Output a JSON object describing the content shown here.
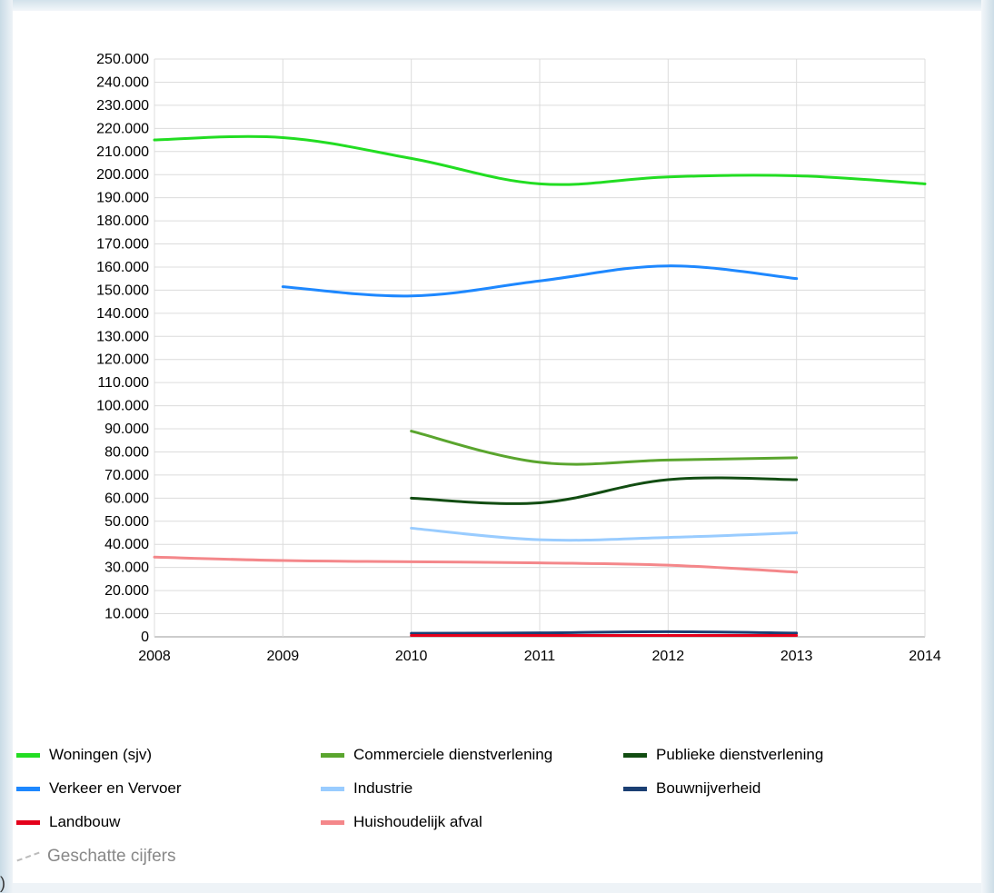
{
  "chart_data": {
    "type": "line",
    "x": [
      2008,
      2009,
      2010,
      2011,
      2012,
      2013,
      2014
    ],
    "x_tick_labels": [
      "2008",
      "2009",
      "2010",
      "2011",
      "2012",
      "2013",
      "2014"
    ],
    "ylim": [
      0,
      250000
    ],
    "y_tick_labels": [
      "0",
      "10.000",
      "20.000",
      "30.000",
      "40.000",
      "50.000",
      "60.000",
      "70.000",
      "80.000",
      "90.000",
      "100.000",
      "110.000",
      "120.000",
      "130.000",
      "140.000",
      "150.000",
      "160.000",
      "170.000",
      "180.000",
      "190.000",
      "200.000",
      "210.000",
      "220.000",
      "230.000",
      "240.000",
      "250.000"
    ],
    "grid": true,
    "legend_position": "bottom",
    "series": [
      {
        "name": "Woningen (sjv)",
        "color": "#22dd22",
        "points": [
          [
            2008,
            215000
          ],
          [
            2009,
            216000
          ],
          [
            2010,
            207000
          ],
          [
            2011,
            196000
          ],
          [
            2012,
            199000
          ],
          [
            2013,
            199500
          ],
          [
            2014,
            196000
          ]
        ]
      },
      {
        "name": "Verkeer en Vervoer",
        "color": "#1e88ff",
        "points": [
          [
            2009,
            151500
          ],
          [
            2010,
            147500
          ],
          [
            2011,
            154000
          ],
          [
            2012,
            160500
          ],
          [
            2013,
            155000
          ]
        ]
      },
      {
        "name": "Commerciele dienstverlening",
        "color": "#5aa52e",
        "points": [
          [
            2010,
            89000
          ],
          [
            2011,
            75500
          ],
          [
            2012,
            76500
          ],
          [
            2013,
            77500
          ]
        ]
      },
      {
        "name": "Publieke dienstverlening",
        "color": "#124d12",
        "points": [
          [
            2010,
            60000
          ],
          [
            2011,
            58000
          ],
          [
            2012,
            68000
          ],
          [
            2013,
            68000
          ]
        ]
      },
      {
        "name": "Industrie",
        "color": "#99ccff",
        "points": [
          [
            2010,
            47000
          ],
          [
            2011,
            42000
          ],
          [
            2012,
            43000
          ],
          [
            2013,
            45000
          ]
        ]
      },
      {
        "name": "Huishoudelijk afval",
        "color": "#f4878a",
        "points": [
          [
            2008,
            34500
          ],
          [
            2009,
            33000
          ],
          [
            2010,
            32500
          ],
          [
            2011,
            32000
          ],
          [
            2012,
            31000
          ],
          [
            2013,
            28000
          ]
        ]
      },
      {
        "name": "Bouwnijverheid",
        "color": "#1b3f73",
        "points": [
          [
            2010,
            1500
          ],
          [
            2011,
            1700
          ],
          [
            2012,
            2200
          ],
          [
            2013,
            1600
          ]
        ]
      },
      {
        "name": "Landbouw",
        "color": "#e4001b",
        "points": [
          [
            2010,
            600
          ],
          [
            2011,
            600
          ],
          [
            2012,
            600
          ],
          [
            2013,
            600
          ]
        ]
      }
    ],
    "estimated_label": "Geschatte cijfers"
  },
  "legend": {
    "items": [
      {
        "label": "Woningen (sjv)",
        "color": "#22dd22"
      },
      {
        "label": "Commerciele dienstverlening",
        "color": "#5aa52e"
      },
      {
        "label": "Publieke dienstverlening",
        "color": "#124d12"
      },
      {
        "label": "Verkeer en Vervoer",
        "color": "#1e88ff"
      },
      {
        "label": "Industrie",
        "color": "#99ccff"
      },
      {
        "label": "Bouwnijverheid",
        "color": "#1b3f73"
      },
      {
        "label": "Landbouw",
        "color": "#e4001b"
      },
      {
        "label": "Huishoudelijk afval",
        "color": "#f4878a"
      }
    ],
    "estimated": "Geschatte cijfers"
  },
  "stray_glyph": ")"
}
